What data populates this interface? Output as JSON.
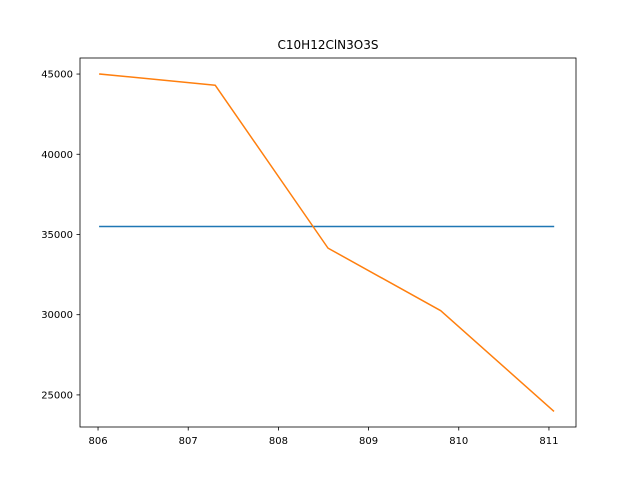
{
  "chart_data": {
    "type": "line",
    "title": "C10H12ClN3O3S",
    "xlabel": "",
    "ylabel": "",
    "xlim": [
      805.8,
      811.3
    ],
    "ylim": [
      23000,
      46000
    ],
    "x_ticks": [
      806,
      807,
      808,
      809,
      810,
      811
    ],
    "y_ticks": [
      25000,
      30000,
      35000,
      40000,
      45000
    ],
    "x_tick_labels": [
      "806",
      "807",
      "808",
      "809",
      "810",
      "811"
    ],
    "y_tick_labels": [
      "25000",
      "30000",
      "35000",
      "40000",
      "45000"
    ],
    "grid": false,
    "legend": "none",
    "series": [
      {
        "color": "#1f77b4",
        "x": [
          806.02,
          811.05
        ],
        "y": [
          35500,
          35500
        ]
      },
      {
        "color": "#ff7f0e",
        "x": [
          806.02,
          807.3,
          808.55,
          809.8,
          811.05
        ],
        "y": [
          45000,
          44300,
          34150,
          30250,
          24000
        ]
      }
    ]
  }
}
